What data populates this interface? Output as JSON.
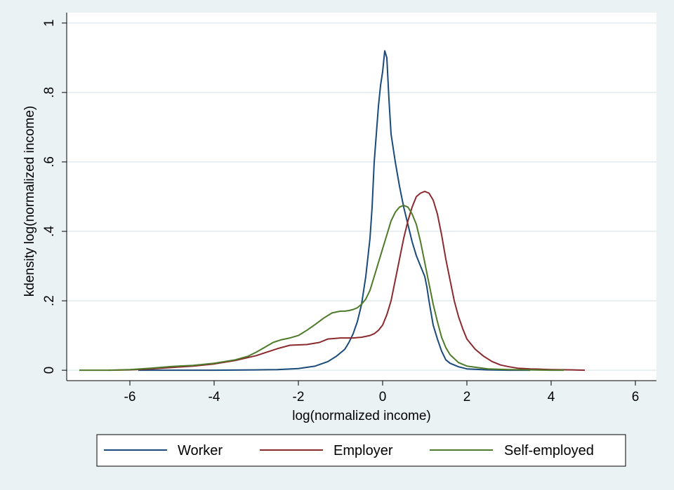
{
  "chart_data": {
    "type": "line",
    "title": "",
    "xlabel": "log(normalized income)",
    "ylabel": "kdensity log(normalized income)",
    "xlim": [
      -7.5,
      6.5
    ],
    "ylim": [
      -0.03,
      1.03
    ],
    "xticks": [
      -6,
      -4,
      -2,
      0,
      2,
      4,
      6
    ],
    "xtick_labels": [
      "-6",
      "-4",
      "-2",
      "0",
      "2",
      "4",
      "6"
    ],
    "yticks": [
      0,
      0.2,
      0.4,
      0.6,
      0.8,
      1
    ],
    "ytick_labels": [
      "0",
      ".2",
      ".4",
      ".6",
      ".8",
      "1"
    ],
    "grid": true,
    "legend_position": "bottom",
    "colors": {
      "background": "#eaf2f3",
      "plot_area": "#ffffff",
      "grid": "#e2ecef",
      "axis": "#000000"
    },
    "series": [
      {
        "name": "Worker",
        "color": "#1a4a7c",
        "x": [
          -5.8,
          -5,
          -4,
          -3,
          -2.5,
          -2,
          -1.6,
          -1.3,
          -1.1,
          -0.9,
          -0.8,
          -0.7,
          -0.6,
          -0.5,
          -0.4,
          -0.3,
          -0.25,
          -0.2,
          -0.1,
          -0.05,
          0,
          0.05,
          0.1,
          0.15,
          0.2,
          0.3,
          0.4,
          0.5,
          0.6,
          0.7,
          0.8,
          0.9,
          1.0,
          1.05,
          1.1,
          1.2,
          1.3,
          1.4,
          1.5,
          1.6,
          1.8,
          2.0,
          2.5,
          3.0,
          3.5
        ],
        "y": [
          0,
          0,
          0,
          0.001,
          0.002,
          0.005,
          0.012,
          0.025,
          0.04,
          0.06,
          0.08,
          0.105,
          0.14,
          0.19,
          0.27,
          0.38,
          0.47,
          0.6,
          0.76,
          0.82,
          0.86,
          0.92,
          0.9,
          0.78,
          0.68,
          0.6,
          0.53,
          0.47,
          0.42,
          0.37,
          0.33,
          0.3,
          0.27,
          0.24,
          0.2,
          0.13,
          0.09,
          0.055,
          0.03,
          0.02,
          0.01,
          0.004,
          0.001,
          0,
          0
        ]
      },
      {
        "name": "Employer",
        "color": "#8b2a2e",
        "x": [
          -6.5,
          -6,
          -5.5,
          -5,
          -4.5,
          -4,
          -3.5,
          -3,
          -2.5,
          -2.2,
          -2,
          -1.8,
          -1.5,
          -1.3,
          -1,
          -0.7,
          -0.5,
          -0.3,
          -0.2,
          -0.1,
          0,
          0.1,
          0.2,
          0.3,
          0.4,
          0.5,
          0.6,
          0.7,
          0.8,
          0.9,
          1.0,
          1.1,
          1.2,
          1.3,
          1.4,
          1.5,
          1.6,
          1.7,
          1.8,
          1.9,
          2.0,
          2.2,
          2.4,
          2.6,
          2.8,
          3.0,
          3.2,
          3.5,
          4.0,
          4.5,
          4.8
        ],
        "y": [
          0,
          0.001,
          0.004,
          0.008,
          0.012,
          0.018,
          0.028,
          0.042,
          0.062,
          0.072,
          0.073,
          0.074,
          0.08,
          0.09,
          0.093,
          0.093,
          0.095,
          0.1,
          0.105,
          0.115,
          0.13,
          0.16,
          0.2,
          0.26,
          0.32,
          0.38,
          0.43,
          0.47,
          0.5,
          0.51,
          0.515,
          0.51,
          0.49,
          0.45,
          0.39,
          0.32,
          0.26,
          0.2,
          0.155,
          0.12,
          0.09,
          0.06,
          0.04,
          0.025,
          0.015,
          0.01,
          0.006,
          0.004,
          0.002,
          0.001,
          0
        ]
      },
      {
        "name": "Self-employed",
        "color": "#4e7a2a",
        "x": [
          -7.2,
          -6.5,
          -6,
          -5.5,
          -5,
          -4.5,
          -4,
          -3.5,
          -3.2,
          -3,
          -2.8,
          -2.6,
          -2.4,
          -2.2,
          -2,
          -1.8,
          -1.6,
          -1.4,
          -1.2,
          -1.0,
          -0.9,
          -0.8,
          -0.7,
          -0.6,
          -0.5,
          -0.4,
          -0.3,
          -0.2,
          -0.1,
          0,
          0.1,
          0.2,
          0.3,
          0.4,
          0.5,
          0.6,
          0.7,
          0.8,
          0.9,
          1.0,
          1.1,
          1.2,
          1.3,
          1.4,
          1.5,
          1.6,
          1.8,
          2.0,
          2.5,
          3.0,
          3.5,
          4.0,
          4.3
        ],
        "y": [
          0,
          0,
          0.002,
          0.006,
          0.011,
          0.014,
          0.02,
          0.03,
          0.04,
          0.052,
          0.066,
          0.08,
          0.088,
          0.093,
          0.1,
          0.115,
          0.132,
          0.15,
          0.165,
          0.17,
          0.17,
          0.172,
          0.175,
          0.18,
          0.19,
          0.205,
          0.23,
          0.27,
          0.31,
          0.35,
          0.39,
          0.43,
          0.455,
          0.47,
          0.475,
          0.47,
          0.45,
          0.42,
          0.37,
          0.31,
          0.25,
          0.19,
          0.14,
          0.095,
          0.065,
          0.045,
          0.022,
          0.012,
          0.004,
          0.002,
          0.001,
          0,
          0
        ]
      }
    ]
  }
}
